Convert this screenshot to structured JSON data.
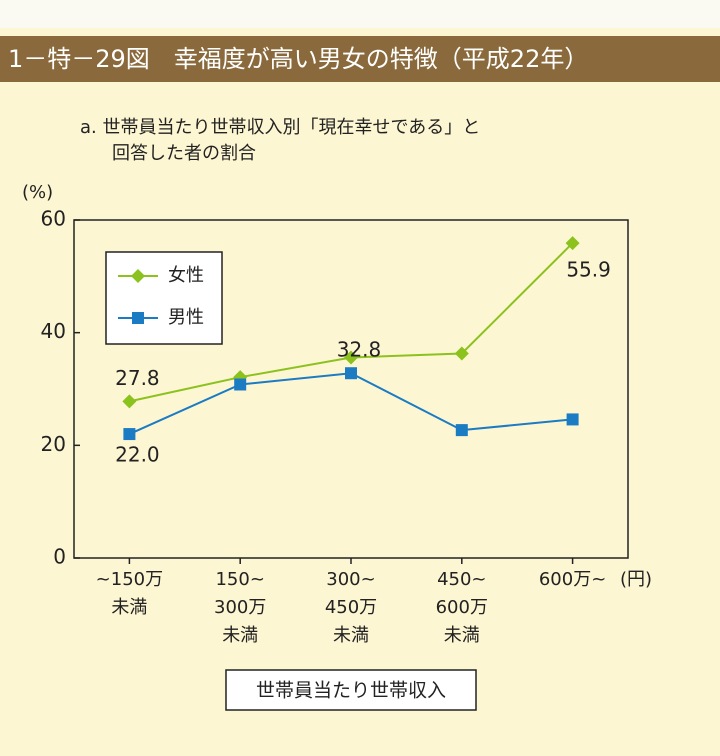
{
  "header": {
    "title": "1－特－29図　幸福度が高い男女の特徴（平成22年）"
  },
  "chart_data": {
    "type": "line",
    "title": [
      "a. 世帯員当たり世帯収入別「現在幸せである」と",
      "回答した者の割合"
    ],
    "y_label": "(%)",
    "x_unit": "(円)",
    "x_label": "世帯員当たり世帯収入",
    "categories": [
      [
        "~150万",
        "未満"
      ],
      [
        "150~",
        "300万",
        "未満"
      ],
      [
        "300~",
        "450万",
        "未満"
      ],
      [
        "450~",
        "600万",
        "未満"
      ],
      [
        "600万~"
      ]
    ],
    "series": [
      {
        "name": "女性",
        "color": "#8cc21e",
        "marker": "diamond",
        "values": [
          27.8,
          32.1,
          35.6,
          36.3,
          55.9
        ],
        "value_labels": [
          "27.8",
          null,
          null,
          null,
          "55.9"
        ]
      },
      {
        "name": "男性",
        "color": "#1b7bc3",
        "marker": "square",
        "values": [
          22.0,
          30.8,
          32.8,
          22.7,
          24.6
        ],
        "value_labels": [
          "22.0",
          null,
          "32.8",
          null,
          null
        ]
      }
    ],
    "ylim": [
      0,
      60
    ],
    "yticks": [
      0,
      20,
      40,
      60
    ],
    "legend": "upper left"
  }
}
